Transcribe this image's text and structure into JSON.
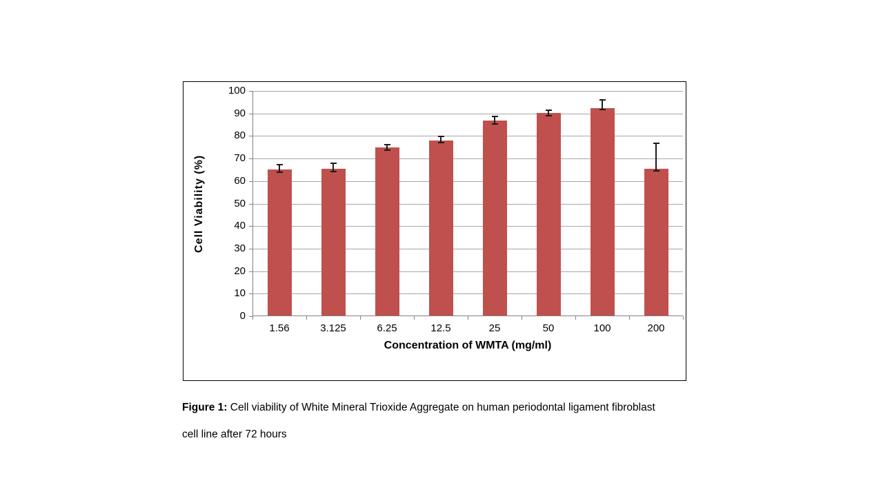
{
  "chart_data": {
    "type": "bar",
    "title": "",
    "xlabel": "Concentration of WMTA (mg/ml)",
    "ylabel": "Cell Viability (%)",
    "ylim": [
      0,
      100
    ],
    "yticks": [
      0,
      10,
      20,
      30,
      40,
      50,
      60,
      70,
      80,
      90,
      100
    ],
    "categories": [
      "1.56",
      "3.125",
      "6.25",
      "12.5",
      "25",
      "50",
      "100",
      "200"
    ],
    "values": [
      65.2,
      65.5,
      74.8,
      78.1,
      86.8,
      90.3,
      92.5,
      65.4
    ],
    "error_top": [
      67.3,
      68.0,
      76.1,
      79.9,
      88.6,
      91.4,
      95.9,
      76.9
    ],
    "error_bottom": [
      63.9,
      64.2,
      73.6,
      77.2,
      85.2,
      89.1,
      91.6,
      64.6
    ],
    "grid": true,
    "legend": false,
    "bar_color": "#C0504D",
    "error_bar_color": "#1a1a1a",
    "gridline_color": "#a6a6a6",
    "axis_color": "#808080",
    "frame_border_color": "#000000"
  },
  "caption": {
    "prefix": "Figure 1:",
    "line1": "Cell viability of White Mineral Trioxide Aggregate on human periodontal ligament fibroblast",
    "line2": "cell line after 72 hours"
  }
}
